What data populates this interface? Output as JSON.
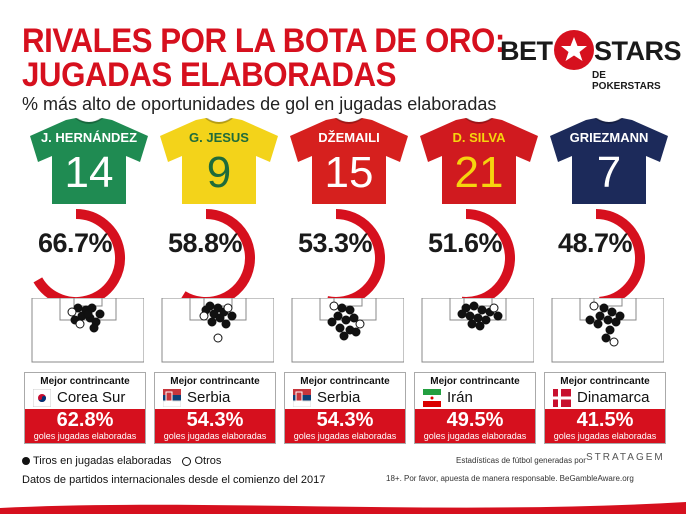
{
  "title_line1": "RIVALES POR LA BOTA DE ORO:",
  "title_line2": "JUGADAS ELABORADAS",
  "subtitle": "% más alto de oportunidades de gol en jugadas elaboradas",
  "logo": {
    "bet": "BET",
    "stars": "STARS",
    "sub": "DE POKERSTARS"
  },
  "colors": {
    "accent": "#d6101e",
    "arc_bg": "#ffffff"
  },
  "players": [
    {
      "name": "J. HERNÁNDEZ",
      "number": "14",
      "shirt_color": "#1f8b52",
      "text_color": "#ffffff",
      "pct_label": "66.7%",
      "pct": 66.7,
      "card_label": "Mejor contrincante",
      "opponent": "Corea Sur",
      "flag_icon": "south-korea-flag-icon",
      "opp_pct": "62.8%",
      "opp_sub": "goles jugadas elaboradas"
    },
    {
      "name": "G. JESUS",
      "number": "9",
      "shirt_color": "#f3d31a",
      "text_color": "#1f6b3a",
      "pct_label": "58.8%",
      "pct": 58.8,
      "card_label": "Mejor contrincante",
      "opponent": "Serbia",
      "flag_icon": "serbia-flag-icon",
      "opp_pct": "54.3%",
      "opp_sub": "goles jugadas elaboradas"
    },
    {
      "name": "DŽEMAILI",
      "number": "15",
      "shirt_color": "#d6201e",
      "text_color": "#ffffff",
      "pct_label": "53.3%",
      "pct": 53.3,
      "card_label": "Mejor contrincante",
      "opponent": "Serbia",
      "flag_icon": "serbia-flag-icon",
      "opp_pct": "54.3%",
      "opp_sub": "goles jugadas elaboradas"
    },
    {
      "name": "D. SILVA",
      "number": "21",
      "shirt_color": "#d01a1f",
      "text_color": "#f6d40e",
      "pct_label": "51.6%",
      "pct": 51.6,
      "card_label": "Mejor contrincante",
      "opponent": "Irán",
      "flag_icon": "iran-flag-icon",
      "opp_pct": "49.5%",
      "opp_sub": "goles jugadas elaboradas"
    },
    {
      "name": "GRIEZMANN",
      "number": "7",
      "shirt_color": "#1c2a5a",
      "text_color": "#ffffff",
      "pct_label": "48.7%",
      "pct": 48.7,
      "card_label": "Mejor contrincante",
      "opponent": "Dinamarca",
      "flag_icon": "denmark-flag-icon",
      "opp_pct": "41.5%",
      "opp_sub": "goles jugadas elaboradas"
    }
  ],
  "legend": {
    "filled": "Tiros en jugadas elaboradas",
    "open": "Otros"
  },
  "note": "Datos de partidos internacionales desde el comienzo del 2017",
  "stats_credit": "Estadísticas de fútbol generadas por",
  "stats_brand": "STRATAGEM",
  "responsible": "18+. Por favor, apuesta de manera responsable. BeGambleAware.org"
}
